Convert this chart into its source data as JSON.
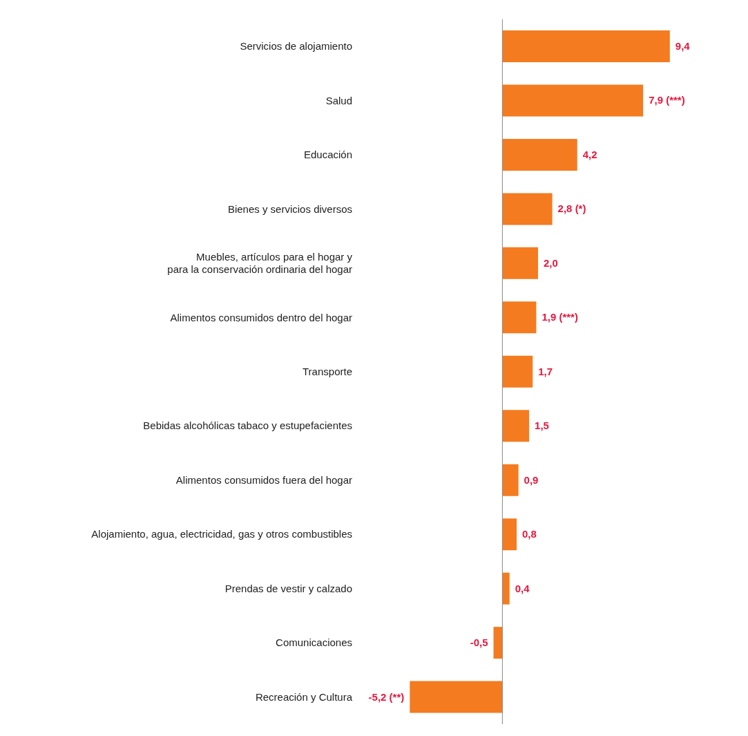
{
  "chart_data": {
    "type": "bar",
    "orientation": "horizontal",
    "categories": [
      "Servicios de alojamiento",
      "Salud",
      "Educación",
      "Bienes y servicios diversos",
      "Muebles, artículos para el hogar y\npara la conservación ordinaria del hogar",
      "Alimentos consumidos dentro del hogar",
      "Transporte",
      "Bebidas alcohólicas tabaco y estupefacientes",
      "Alimentos consumidos fuera del hogar",
      "Alojamiento, agua, electricidad, gas y otros combustibles",
      "Prendas de vestir y calzado",
      "Comunicaciones",
      "Recreación y Cultura"
    ],
    "values": [
      9.4,
      7.9,
      4.2,
      2.8,
      2.0,
      1.9,
      1.7,
      1.5,
      0.9,
      0.8,
      0.4,
      -0.5,
      -5.2
    ],
    "value_labels": [
      "9,4",
      "7,9 (***)",
      "4,2",
      "2,8 (*)",
      "2,0",
      "1,9 (***)",
      "1,7",
      "1,5",
      "0,9",
      "0,8",
      "0,4",
      "-0,5",
      "-5,2 (**)"
    ],
    "color": "#f47b20"
  }
}
